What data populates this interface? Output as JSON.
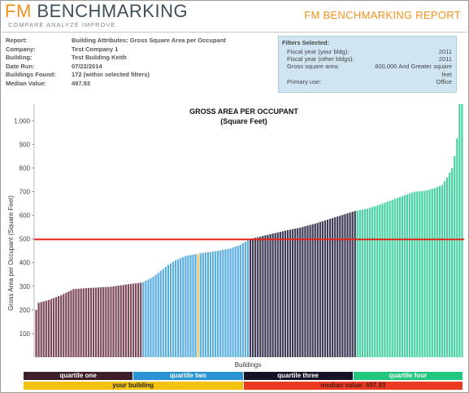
{
  "header": {
    "logo_fm": "FM",
    "logo_rest": "BENCHMARKING",
    "tagline": "COMPARE   ANALYZE   IMPROVE",
    "report_title": "FM BENCHMARKING REPORT"
  },
  "info": [
    {
      "key": "Report:",
      "value": "Building Attributes: Gross Square Area per Occupant"
    },
    {
      "key": "Company:",
      "value": "Test Company 1"
    },
    {
      "key": "Building:",
      "value": "Test Building Keith"
    },
    {
      "key": "Date Run:",
      "value": "07/22/2014"
    },
    {
      "key": "Buildings Found:",
      "value": "172 (within selected filters)"
    },
    {
      "key": "Median Value:",
      "value": "497.93"
    }
  ],
  "filters": {
    "title": "Filters Selected:",
    "rows": [
      {
        "key": "Fiscal year (your bldg):",
        "value": "2011"
      },
      {
        "key": "Fiscal year (other bldgs):",
        "value": "2011"
      },
      {
        "key": "Gross square area:",
        "value": "600,000 And Greater square feet"
      },
      {
        "key": "Primary use:",
        "value": "Office"
      }
    ]
  },
  "chart_data": {
    "type": "bar",
    "title": "GROSS AREA PER OCCUPANT",
    "subtitle": "(Square Feet)",
    "xlabel": "Buildings",
    "ylabel": "Gross Area per Occupant (Square Feet)",
    "ylim": [
      0,
      1070
    ],
    "yticks": [
      {
        "value": 100,
        "label": "100"
      },
      {
        "value": 200,
        "label": "200"
      },
      {
        "value": 300,
        "label": "300"
      },
      {
        "value": 400,
        "label": "400"
      },
      {
        "value": 500,
        "label": "500"
      },
      {
        "value": 600,
        "label": "600"
      },
      {
        "value": 700,
        "label": "700"
      },
      {
        "value": 800,
        "label": "800"
      },
      {
        "value": 900,
        "label": "900"
      },
      {
        "value": 1000,
        "label": "1,000"
      }
    ],
    "grid": false,
    "median": 497.93,
    "n_buildings": 172,
    "your_building_index": 65,
    "quartiles": [
      {
        "name": "quartile one",
        "color": "#7b4a5b",
        "start": 0,
        "end": 43,
        "anchors": [
          [
            0,
            200
          ],
          [
            1,
            230
          ],
          [
            5,
            242
          ],
          [
            10,
            262
          ],
          [
            15,
            288
          ],
          [
            20,
            292
          ],
          [
            30,
            298
          ],
          [
            38,
            310
          ],
          [
            42,
            315
          ]
        ]
      },
      {
        "name": "quartile two",
        "color": "#5aaee0",
        "start": 43,
        "end": 86,
        "anchors": [
          [
            43,
            318
          ],
          [
            47,
            340
          ],
          [
            50,
            365
          ],
          [
            53,
            390
          ],
          [
            56,
            410
          ],
          [
            60,
            428
          ],
          [
            65,
            438
          ],
          [
            72,
            448
          ],
          [
            78,
            460
          ],
          [
            82,
            475
          ],
          [
            85,
            495
          ]
        ]
      },
      {
        "name": "quartile three",
        "color": "#3e3a55",
        "start": 86,
        "end": 129,
        "anchors": [
          [
            86,
            500
          ],
          [
            90,
            510
          ],
          [
            94,
            520
          ],
          [
            100,
            535
          ],
          [
            106,
            548
          ],
          [
            112,
            565
          ],
          [
            118,
            585
          ],
          [
            124,
            605
          ],
          [
            128,
            618
          ]
        ]
      },
      {
        "name": "quartile four",
        "color": "#46d3a3",
        "start": 129,
        "end": 172,
        "anchors": [
          [
            129,
            620
          ],
          [
            133,
            628
          ],
          [
            138,
            645
          ],
          [
            143,
            665
          ],
          [
            148,
            685
          ],
          [
            152,
            700
          ],
          [
            156,
            703
          ],
          [
            160,
            715
          ],
          [
            163,
            728
          ],
          [
            165,
            760
          ],
          [
            167,
            800
          ],
          [
            168,
            850
          ],
          [
            169,
            925
          ],
          [
            170,
            1070
          ],
          [
            171,
            1070
          ]
        ]
      }
    ],
    "your_building_color": "#f2c85a",
    "median_color": "#e8251f"
  },
  "legend": {
    "row1": [
      {
        "label": "quartile one",
        "bg": "#3d1e2a",
        "fg": "#ffffff"
      },
      {
        "label": "quartile two",
        "bg": "#2a93d2",
        "fg": "#ffffff"
      },
      {
        "label": "quartile three",
        "bg": "#141428",
        "fg": "#ffffff"
      },
      {
        "label": "quartile four",
        "bg": "#22c77e",
        "fg": "#ffffff"
      }
    ],
    "row2": [
      {
        "label": "your building",
        "bg": "#f4c20d",
        "fg": "#222222"
      },
      {
        "label": "median value: 497.93",
        "bg": "#ec3a23",
        "fg": "#4a1a14"
      }
    ]
  }
}
